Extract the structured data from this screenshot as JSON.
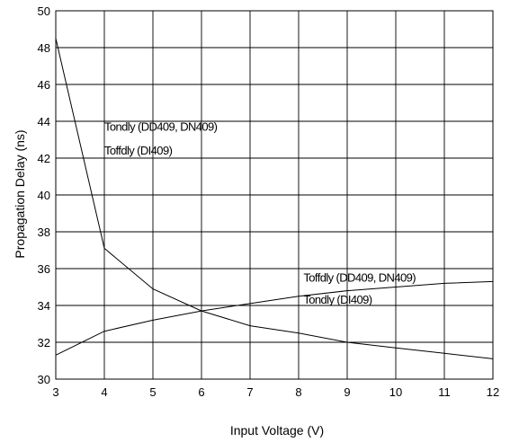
{
  "chart_data": {
    "type": "line",
    "xlabel": "Input Voltage (V)",
    "ylabel": "Propagation Delay (ns)",
    "xlim": [
      3,
      12
    ],
    "ylim": [
      30,
      50
    ],
    "x_ticks": [
      "3",
      "4",
      "5",
      "6",
      "7",
      "8",
      "9",
      "10",
      "11",
      "12"
    ],
    "y_ticks": [
      "30",
      "32",
      "34",
      "36",
      "38",
      "40",
      "42",
      "44",
      "46",
      "48",
      "50"
    ],
    "grid": true,
    "series": [
      {
        "name": "Tondly (DD409, DN409) / Toffdly (DI409)",
        "x": [
          3,
          4,
          5,
          6,
          7,
          8,
          9,
          10,
          11,
          12
        ],
        "values": [
          48.5,
          37.1,
          34.9,
          33.7,
          32.9,
          32.5,
          32.0,
          31.7,
          31.4,
          31.1
        ]
      },
      {
        "name": "Toffdly (DD409, DN409) / Tondly (DI409)",
        "x": [
          3,
          4,
          5,
          6,
          7,
          8,
          9,
          10,
          11,
          12
        ],
        "values": [
          31.3,
          32.6,
          33.2,
          33.7,
          34.1,
          34.5,
          34.8,
          35.0,
          35.2,
          35.3
        ]
      }
    ],
    "annotations": [
      {
        "text": "Tondly (DD409, DN409)",
        "x": 4.0,
        "y": 43.5
      },
      {
        "text": "Toffdly (DI409)",
        "x": 4.0,
        "y": 42.2
      },
      {
        "text": "Toffdly (DD409, DN409)",
        "x": 8.1,
        "y": 35.3
      },
      {
        "text": "Tondly (DI409)",
        "x": 8.1,
        "y": 34.1
      }
    ]
  }
}
